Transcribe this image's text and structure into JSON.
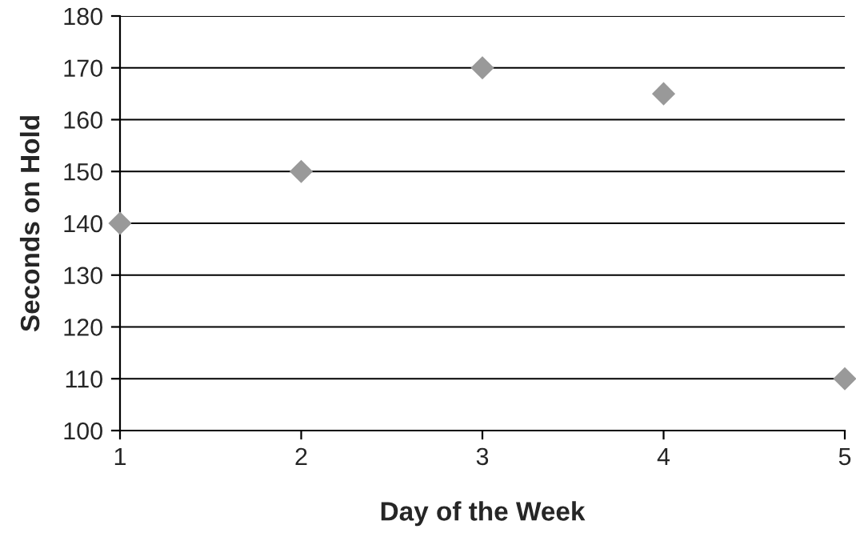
{
  "chart_data": {
    "type": "scatter",
    "xlabel": "Day of the Week",
    "ylabel": "Seconds on Hold",
    "x": [
      1,
      2,
      3,
      4,
      5
    ],
    "series": [
      {
        "color": "#999999",
        "values": [
          140,
          150,
          170,
          165,
          110
        ]
      }
    ],
    "xlim": [
      1,
      5
    ],
    "xticks": [
      1,
      2,
      3,
      4,
      5
    ],
    "ylim": [
      100,
      180
    ],
    "yticks": [
      100,
      110,
      120,
      130,
      140,
      150,
      160,
      170,
      180
    ],
    "grid": "y",
    "marker": "diamond",
    "legend": false
  }
}
